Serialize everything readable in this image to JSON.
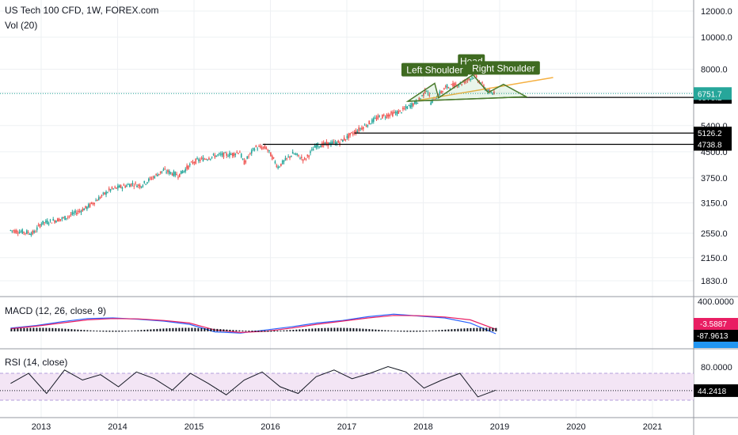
{
  "header": {
    "symbol_line": "US Tech 100 CFD, 1W, FOREX.com",
    "volume_line": "Vol (20)"
  },
  "macd_panel": {
    "label": "MACD (12, 26, close, 9)"
  },
  "rsi_panel": {
    "label": "RSI (14, close)"
  },
  "colors": {
    "up": "#26a69a",
    "down": "#ef5350",
    "grid": "#eef0f3",
    "pattern_green": "#4a7a2c",
    "annotation_bg": "#3f6b21",
    "resistance_orange": "#f5b041",
    "macd_line": "#2962ff",
    "signal_line": "#e91e63",
    "rsi_line": "#131722",
    "rsi_band": "#f3e5f5",
    "dotted_level": "#26a69a",
    "macd_tag": "#e91e63",
    "macd_blue": "#2196f3"
  },
  "chart_data": [
    {
      "type": "candlestick",
      "panel": "price",
      "scale": "log",
      "x_axis_years": [
        "2013",
        "2014",
        "2015",
        "2016",
        "2017",
        "2018",
        "2019",
        "2020",
        "2021"
      ],
      "y_ticks": [
        "12000.0",
        "10000.0",
        "8000.0",
        "6800.0",
        "5400.0",
        "4500.0",
        "3750.0",
        "3150.0",
        "2550.0",
        "2150.0",
        "1830.0"
      ],
      "path_points": [
        {
          "x": 2012.6,
          "y": 2600
        },
        {
          "x": 2012.9,
          "y": 2550
        },
        {
          "x": 2013.0,
          "y": 2730
        },
        {
          "x": 2013.3,
          "y": 2830
        },
        {
          "x": 2013.6,
          "y": 3050
        },
        {
          "x": 2013.9,
          "y": 3450
        },
        {
          "x": 2014.2,
          "y": 3600
        },
        {
          "x": 2014.3,
          "y": 3550
        },
        {
          "x": 2014.6,
          "y": 3950
        },
        {
          "x": 2014.8,
          "y": 3820
        },
        {
          "x": 2015.0,
          "y": 4200
        },
        {
          "x": 2015.3,
          "y": 4390
        },
        {
          "x": 2015.5,
          "y": 4420
        },
        {
          "x": 2015.6,
          "y": 4510
        },
        {
          "x": 2015.65,
          "y": 4150
        },
        {
          "x": 2015.8,
          "y": 4640
        },
        {
          "x": 2015.95,
          "y": 4620
        },
        {
          "x": 2016.1,
          "y": 4050
        },
        {
          "x": 2016.3,
          "y": 4450
        },
        {
          "x": 2016.45,
          "y": 4250
        },
        {
          "x": 2016.6,
          "y": 4700
        },
        {
          "x": 2016.9,
          "y": 4800
        },
        {
          "x": 2017.1,
          "y": 5150
        },
        {
          "x": 2017.4,
          "y": 5700
        },
        {
          "x": 2017.7,
          "y": 5950
        },
        {
          "x": 2017.95,
          "y": 6450
        },
        {
          "x": 2018.05,
          "y": 7000
        },
        {
          "x": 2018.1,
          "y": 6350
        },
        {
          "x": 2018.3,
          "y": 7050
        },
        {
          "x": 2018.5,
          "y": 7250
        },
        {
          "x": 2018.67,
          "y": 7650
        },
        {
          "x": 2018.8,
          "y": 7050
        },
        {
          "x": 2018.9,
          "y": 6700
        },
        {
          "x": 2018.93,
          "y": 6850
        }
      ],
      "horizontal_levels": [
        {
          "value": 6573.2,
          "label": "6573.2",
          "x_start": 2019.05
        },
        {
          "value": 5126.2,
          "label": "5126.2",
          "x_start": 2017.1
        },
        {
          "value": 4738.8,
          "label": "4738.8",
          "x_start": 2015.9
        }
      ],
      "last_price": {
        "value": 6751.7,
        "label": "6751.7"
      },
      "annotations": [
        "Left Shoulder",
        "Head",
        "Right Shoulder"
      ]
    },
    {
      "type": "line",
      "panel": "macd",
      "y_ticks": [
        "400.0000"
      ],
      "series": [
        {
          "values": [
            40,
            80,
            140,
            190,
            200,
            180,
            150,
            100,
            -20,
            -40,
            10,
            60,
            120,
            160,
            220,
            260,
            230,
            200,
            120,
            -50
          ]
        },
        {
          "values": [
            30,
            70,
            120,
            170,
            190,
            185,
            160,
            120,
            10,
            -30,
            -10,
            40,
            100,
            150,
            200,
            240,
            235,
            215,
            170,
            20
          ]
        }
      ],
      "tags": [
        "-3.5887",
        "-87.9613"
      ]
    },
    {
      "type": "line",
      "panel": "rsi",
      "y_ticks": [
        "80.0000"
      ],
      "values": [
        55,
        70,
        40,
        75,
        60,
        68,
        50,
        72,
        62,
        45,
        70,
        55,
        38,
        60,
        72,
        50,
        40,
        65,
        75,
        62,
        70,
        80,
        72,
        48,
        60,
        70,
        35,
        45
      ],
      "tag": "44.2418"
    }
  ]
}
